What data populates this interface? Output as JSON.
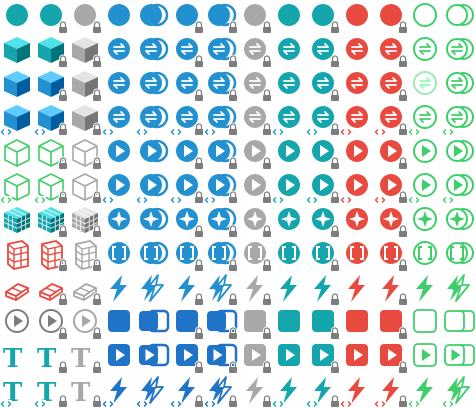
{
  "palette": {
    "teal": "#14a6ac",
    "teal_dark": "#0f6b78",
    "teal_light": "#7fd3da",
    "blue": "#2390d0",
    "blue_dark": "#1f74c8",
    "gray": "#a8a8a8",
    "gray_dark": "#7d7d7d",
    "gray_light": "#d0d0d0",
    "red": "#e84a3f",
    "green": "#3fcf6a",
    "white": "#ffffff"
  },
  "legend": {
    "lock_badge": "lock-icon",
    "code_badge": "code-brackets-icon",
    "text_glyph": "T"
  },
  "rows": [
    {
      "name": "row-1",
      "cells": [
        {
          "icon": "circle",
          "color": "teal"
        },
        {
          "icon": "circle",
          "color": "teal",
          "badge": "lock"
        },
        {
          "icon": "circle",
          "color": "gray",
          "badge": "lock"
        },
        {
          "icon": "circle",
          "color": "blue"
        },
        {
          "icon": "circle-double",
          "color": "blue"
        },
        {
          "icon": "circle",
          "color": "blue",
          "badge": "lock"
        },
        {
          "icon": "circle-double",
          "color": "blue",
          "badge": "lock"
        },
        {
          "icon": "circle",
          "color": "gray",
          "badge": "lock"
        },
        {
          "icon": "circle",
          "color": "teal"
        },
        {
          "icon": "circle",
          "color": "teal",
          "badge": "lock"
        },
        {
          "icon": "circle",
          "color": "red"
        },
        {
          "icon": "circle",
          "color": "red",
          "badge": "lock"
        },
        {
          "icon": "ring",
          "color": "green"
        },
        {
          "icon": "ring-double",
          "color": "green"
        }
      ]
    },
    {
      "name": "row-2",
      "cells": [
        {
          "icon": "cube",
          "color": "teal"
        },
        {
          "icon": "cube",
          "color": "teal",
          "badge": "lock"
        },
        {
          "icon": "cube",
          "color": "gray",
          "badge": "lock"
        },
        {
          "icon": "arrows-circle",
          "color": "blue"
        },
        {
          "icon": "arrows-circle-double",
          "color": "blue"
        },
        {
          "icon": "arrows-circle",
          "color": "blue",
          "badge": "lock"
        },
        {
          "icon": "arrows-circle-double",
          "color": "blue",
          "badge": "lock"
        },
        {
          "icon": "arrows-circle",
          "color": "gray",
          "badge": "lock"
        },
        {
          "icon": "arrows-circle",
          "color": "teal"
        },
        {
          "icon": "arrows-circle",
          "color": "teal",
          "badge": "lock"
        },
        {
          "icon": "arrows-circle",
          "color": "red"
        },
        {
          "icon": "arrows-circle",
          "color": "red",
          "badge": "lock"
        },
        {
          "icon": "arrows-ring",
          "color": "green"
        },
        {
          "icon": "arrows-ring-double",
          "color": "green"
        }
      ]
    },
    {
      "name": "row-3",
      "cells": [
        {
          "icon": "cube",
          "color": "blue"
        },
        {
          "icon": "cube",
          "color": "blue",
          "badge": "lock"
        },
        {
          "icon": "cube",
          "color": "gray",
          "badge": "lock"
        },
        {
          "icon": "arrows-circle",
          "color": "blue"
        },
        {
          "icon": "arrows-circle-double",
          "color": "blue"
        },
        {
          "icon": "arrows-circle",
          "color": "blue",
          "badge": "lock"
        },
        {
          "icon": "arrows-circle-double",
          "color": "blue",
          "badge": "lock"
        },
        {
          "icon": "arrows-circle",
          "color": "gray",
          "badge": "lock"
        },
        {
          "icon": "arrows-circle",
          "color": "teal"
        },
        {
          "icon": "arrows-circle",
          "color": "teal",
          "badge": "lock"
        },
        {
          "icon": "arrows-circle",
          "color": "red"
        },
        {
          "icon": "arrows-circle",
          "color": "red",
          "badge": "lock"
        },
        {
          "icon": "arrows-ring-faded",
          "color": "green"
        },
        {
          "icon": "arrows-ring-double",
          "color": "green"
        }
      ]
    },
    {
      "name": "row-4",
      "cells": [
        {
          "icon": "cube",
          "color": "blue",
          "badge": "code"
        },
        {
          "icon": "cube",
          "color": "blue",
          "badge": "code-lock"
        },
        {
          "icon": "cube",
          "color": "gray",
          "badge": "lock"
        },
        {
          "icon": "arrows-circle",
          "color": "blue",
          "badge": "code"
        },
        {
          "icon": "arrows-circle-double",
          "color": "blue",
          "badge": "code"
        },
        {
          "icon": "arrows-circle",
          "color": "blue",
          "badge": "code-lock"
        },
        {
          "icon": "arrows-circle-double",
          "color": "blue",
          "badge": "code-lock"
        },
        {
          "icon": "arrows-circle",
          "color": "gray",
          "badge": "lock"
        },
        {
          "icon": "arrows-circle",
          "color": "teal",
          "badge": "code"
        },
        {
          "icon": "arrows-circle",
          "color": "teal",
          "badge": "code-lock"
        },
        {
          "icon": "arrows-circle",
          "color": "red",
          "badge": "code"
        },
        {
          "icon": "arrows-circle",
          "color": "red",
          "badge": "code-lock"
        },
        {
          "icon": "arrows-ring",
          "color": "green",
          "badge": "code"
        },
        {
          "icon": "arrows-ring-double",
          "color": "green",
          "badge": "code"
        }
      ]
    },
    {
      "name": "row-5",
      "cells": [
        {
          "icon": "cube-outline",
          "color": "green"
        },
        {
          "icon": "cube-outline",
          "color": "green",
          "badge": "lock"
        },
        {
          "icon": "cube-outline",
          "color": "gray",
          "badge": "lock"
        },
        {
          "icon": "play-circle",
          "color": "blue"
        },
        {
          "icon": "play-circle-double",
          "color": "blue"
        },
        {
          "icon": "play-circle",
          "color": "blue",
          "badge": "lock"
        },
        {
          "icon": "play-circle-double",
          "color": "blue",
          "badge": "lock"
        },
        {
          "icon": "play-circle",
          "color": "gray",
          "badge": "lock"
        },
        {
          "icon": "play-circle",
          "color": "teal"
        },
        {
          "icon": "play-circle",
          "color": "teal",
          "badge": "lock"
        },
        {
          "icon": "play-circle",
          "color": "red"
        },
        {
          "icon": "play-circle",
          "color": "red",
          "badge": "lock"
        },
        {
          "icon": "play-ring",
          "color": "green"
        },
        {
          "icon": "play-ring-double",
          "color": "green"
        }
      ]
    },
    {
      "name": "row-6",
      "cells": [
        {
          "icon": "cube-outline",
          "color": "green",
          "badge": "code"
        },
        {
          "icon": "cube-outline",
          "color": "green",
          "badge": "code-lock"
        },
        {
          "icon": "cube-outline",
          "color": "gray",
          "badge": "lock"
        },
        {
          "icon": "play-circle",
          "color": "blue",
          "badge": "code"
        },
        {
          "icon": "play-circle-double",
          "color": "blue",
          "badge": "code"
        },
        {
          "icon": "play-circle",
          "color": "blue",
          "badge": "code-lock"
        },
        {
          "icon": "play-circle-double",
          "color": "blue",
          "badge": "code-lock"
        },
        {
          "icon": "play-circle",
          "color": "gray",
          "badge": "lock"
        },
        {
          "icon": "play-circle",
          "color": "teal",
          "badge": "code"
        },
        {
          "icon": "play-circle",
          "color": "teal",
          "badge": "code-lock"
        },
        {
          "icon": "play-circle",
          "color": "red",
          "badge": "code"
        },
        {
          "icon": "play-circle",
          "color": "red",
          "badge": "code-lock"
        },
        {
          "icon": "play-ring",
          "color": "green",
          "badge": "code"
        },
        {
          "icon": "play-ring-double",
          "color": "green",
          "badge": "code"
        }
      ]
    },
    {
      "name": "row-7",
      "cells": [
        {
          "icon": "grid-cube",
          "color": "teal"
        },
        {
          "icon": "grid-cube",
          "color": "teal",
          "badge": "lock"
        },
        {
          "icon": "grid-cube",
          "color": "gray",
          "badge": "lock"
        },
        {
          "icon": "star-circle",
          "color": "blue"
        },
        {
          "icon": "star-circle-double",
          "color": "blue"
        },
        {
          "icon": "star-circle",
          "color": "blue",
          "badge": "lock"
        },
        {
          "icon": "star-circle-double",
          "color": "blue",
          "badge": "lock"
        },
        {
          "icon": "star-circle",
          "color": "gray",
          "badge": "lock"
        },
        {
          "icon": "star-circle",
          "color": "teal"
        },
        {
          "icon": "star-circle",
          "color": "teal",
          "badge": "lock"
        },
        {
          "icon": "star-circle",
          "color": "red"
        },
        {
          "icon": "star-circle",
          "color": "red",
          "badge": "lock"
        },
        {
          "icon": "star-ring",
          "color": "green"
        },
        {
          "icon": "star-ring-double",
          "color": "green"
        }
      ]
    },
    {
      "name": "row-8",
      "cells": [
        {
          "icon": "bricks",
          "color": "red"
        },
        {
          "icon": "bricks",
          "color": "red",
          "badge": "lock"
        },
        {
          "icon": "bricks",
          "color": "gray",
          "badge": "lock"
        },
        {
          "icon": "bracket-circle",
          "color": "blue"
        },
        {
          "icon": "bracket-circle-double",
          "color": "blue"
        },
        {
          "icon": "bracket-circle",
          "color": "blue",
          "badge": "lock"
        },
        {
          "icon": "bracket-circle-double",
          "color": "blue",
          "badge": "lock"
        },
        {
          "icon": "bracket-circle",
          "color": "gray",
          "badge": "lock"
        },
        {
          "icon": "bracket-circle",
          "color": "teal"
        },
        {
          "icon": "bracket-circle",
          "color": "teal",
          "badge": "lock"
        },
        {
          "icon": "bracket-circle",
          "color": "red"
        },
        {
          "icon": "bracket-circle",
          "color": "red",
          "badge": "lock"
        },
        {
          "icon": "bracket-ring",
          "color": "green"
        },
        {
          "icon": "bracket-ring-double",
          "color": "green"
        }
      ]
    },
    {
      "name": "row-9",
      "cells": [
        {
          "icon": "eraser",
          "color": "red"
        },
        {
          "icon": "eraser",
          "color": "red",
          "badge": "lock"
        },
        {
          "icon": "eraser",
          "color": "gray",
          "badge": "lock"
        },
        {
          "icon": "bolt",
          "color": "blue"
        },
        {
          "icon": "bolt-double",
          "color": "blue"
        },
        {
          "icon": "bolt",
          "color": "blue",
          "badge": "lock"
        },
        {
          "icon": "bolt-double",
          "color": "blue",
          "badge": "lock"
        },
        {
          "icon": "bolt",
          "color": "gray",
          "badge": "lock"
        },
        {
          "icon": "bolt",
          "color": "teal"
        },
        {
          "icon": "bolt",
          "color": "teal",
          "badge": "lock"
        },
        {
          "icon": "bolt",
          "color": "red"
        },
        {
          "icon": "bolt",
          "color": "red",
          "badge": "lock"
        },
        {
          "icon": "bolt",
          "color": "green"
        },
        {
          "icon": "bolt-double",
          "color": "green"
        }
      ]
    },
    {
      "name": "row-10",
      "cells": [
        {
          "icon": "play-ring",
          "color": "gray_dark"
        },
        {
          "icon": "play-ring",
          "color": "gray_dark",
          "badge": "lock"
        },
        {
          "icon": "play-ring",
          "color": "gray",
          "badge": "lock"
        },
        {
          "icon": "rounded-square",
          "color": "blue_dark"
        },
        {
          "icon": "rounded-square-double",
          "color": "blue_dark"
        },
        {
          "icon": "rounded-square",
          "color": "blue_dark",
          "badge": "lock"
        },
        {
          "icon": "rounded-square-double",
          "color": "blue_dark",
          "badge": "lock"
        },
        {
          "icon": "rounded-square",
          "color": "gray",
          "badge": "lock"
        },
        {
          "icon": "rounded-square",
          "color": "teal"
        },
        {
          "icon": "rounded-square",
          "color": "teal",
          "badge": "lock"
        },
        {
          "icon": "rounded-square",
          "color": "red"
        },
        {
          "icon": "rounded-square",
          "color": "red",
          "badge": "lock"
        },
        {
          "icon": "square-outline",
          "color": "green"
        },
        {
          "icon": "square-outline-double",
          "color": "green"
        }
      ]
    },
    {
      "name": "row-11",
      "cells": [
        {
          "icon": "text-t",
          "color": "teal"
        },
        {
          "icon": "text-t",
          "color": "teal",
          "badge": "lock"
        },
        {
          "icon": "text-t",
          "color": "gray",
          "badge": "lock"
        },
        {
          "icon": "play-square",
          "color": "blue_dark"
        },
        {
          "icon": "play-square-double",
          "color": "blue_dark"
        },
        {
          "icon": "play-square",
          "color": "blue_dark",
          "badge": "lock"
        },
        {
          "icon": "play-square-double",
          "color": "blue_dark",
          "badge": "lock"
        },
        {
          "icon": "play-square",
          "color": "gray",
          "badge": "lock"
        },
        {
          "icon": "play-square",
          "color": "teal"
        },
        {
          "icon": "play-square",
          "color": "teal",
          "badge": "lock"
        },
        {
          "icon": "play-square",
          "color": "red"
        },
        {
          "icon": "play-square",
          "color": "red",
          "badge": "lock"
        },
        {
          "icon": "play-square-outline",
          "color": "green"
        },
        {
          "icon": "play-square-outline-double",
          "color": "green"
        }
      ]
    },
    {
      "name": "row-12",
      "cells": [
        {
          "icon": "text-t",
          "color": "teal",
          "badge": "code"
        },
        {
          "icon": "text-t",
          "color": "teal",
          "badge": "code-lock"
        },
        {
          "icon": "text-t",
          "color": "gray",
          "badge": "lock"
        },
        {
          "icon": "bolt",
          "color": "blue_dark",
          "badge": "code"
        },
        {
          "icon": "bolt-double",
          "color": "blue_dark",
          "badge": "code"
        },
        {
          "icon": "bolt",
          "color": "blue_dark",
          "badge": "code-lock"
        },
        {
          "icon": "bolt-double",
          "color": "blue_dark",
          "badge": "code-lock"
        },
        {
          "icon": "bolt",
          "color": "gray",
          "badge": "lock"
        },
        {
          "icon": "bolt",
          "color": "teal",
          "badge": "code"
        },
        {
          "icon": "bolt",
          "color": "teal",
          "badge": "code-lock"
        },
        {
          "icon": "bolt",
          "color": "red",
          "badge": "code"
        },
        {
          "icon": "bolt",
          "color": "red",
          "badge": "code-lock"
        },
        {
          "icon": "bolt",
          "color": "green",
          "badge": "code"
        },
        {
          "icon": "bolt-double",
          "color": "green",
          "badge": "code"
        }
      ]
    }
  ]
}
